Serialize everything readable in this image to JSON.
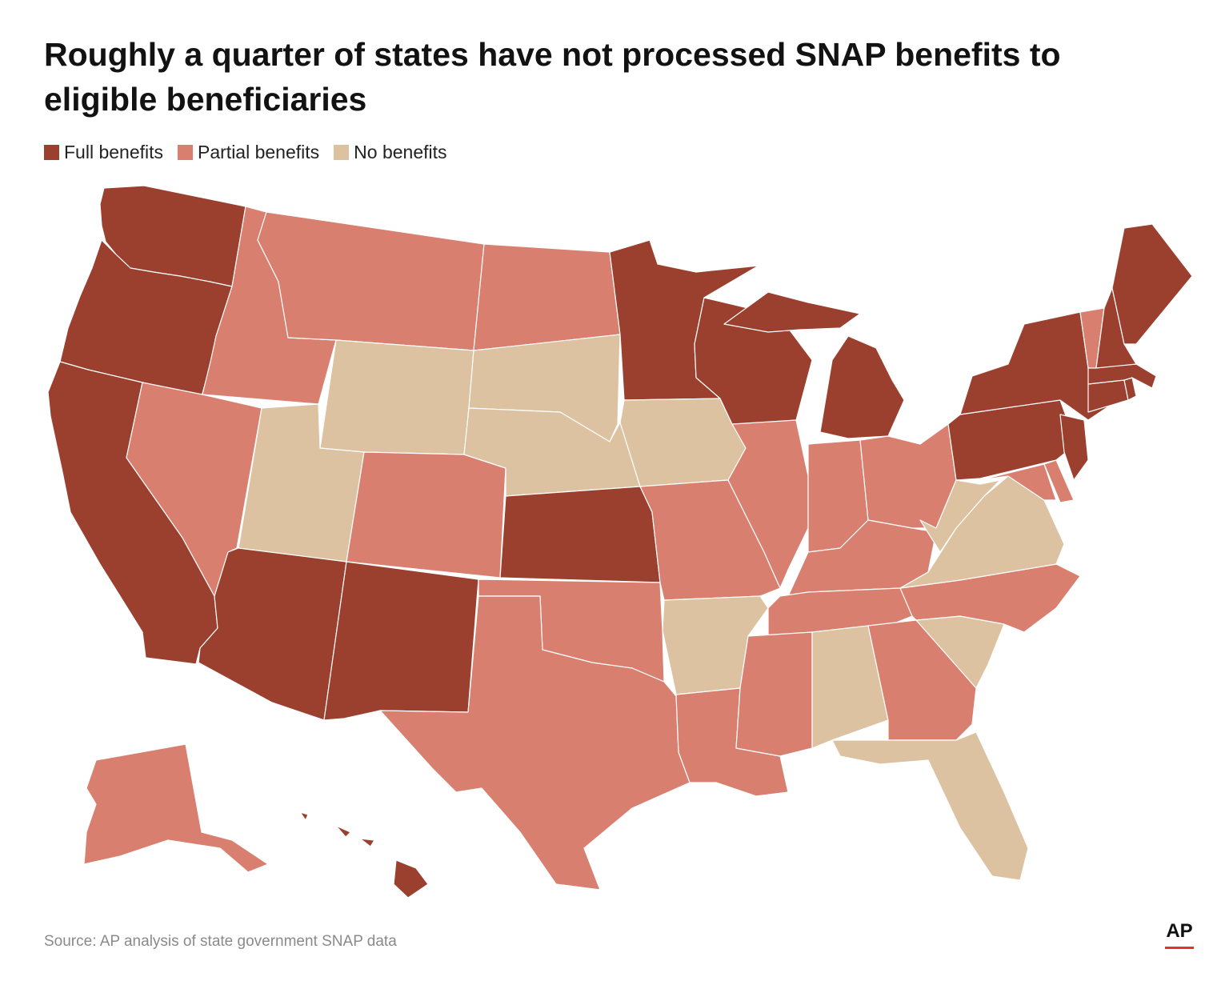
{
  "title": "Roughly a quarter of states have not processed SNAP benefits to eligible beneficiaries",
  "legend": [
    {
      "label": "Full benefits",
      "color": "#9b3f2e"
    },
    {
      "label": "Partial benefits",
      "color": "#d97f70"
    },
    {
      "label": "No benefits",
      "color": "#dcc2a1"
    }
  ],
  "states": [
    {
      "id": "WA",
      "status": "Full benefits"
    },
    {
      "id": "OR",
      "status": "Full benefits"
    },
    {
      "id": "CA",
      "status": "Full benefits"
    },
    {
      "id": "ID",
      "status": "Partial benefits"
    },
    {
      "id": "NV",
      "status": "Partial benefits"
    },
    {
      "id": "MT",
      "status": "Partial benefits"
    },
    {
      "id": "WY",
      "status": "No benefits"
    },
    {
      "id": "UT",
      "status": "No benefits"
    },
    {
      "id": "AZ",
      "status": "Full benefits"
    },
    {
      "id": "CO",
      "status": "Partial benefits"
    },
    {
      "id": "NM",
      "status": "Full benefits"
    },
    {
      "id": "ND",
      "status": "Partial benefits"
    },
    {
      "id": "SD",
      "status": "No benefits"
    },
    {
      "id": "NE",
      "status": "No benefits"
    },
    {
      "id": "KS",
      "status": "Full benefits"
    },
    {
      "id": "OK",
      "status": "Partial benefits"
    },
    {
      "id": "TX",
      "status": "Partial benefits"
    },
    {
      "id": "MN",
      "status": "Full benefits"
    },
    {
      "id": "IA",
      "status": "No benefits"
    },
    {
      "id": "MO",
      "status": "Partial benefits"
    },
    {
      "id": "AR",
      "status": "No benefits"
    },
    {
      "id": "LA",
      "status": "Partial benefits"
    },
    {
      "id": "WI",
      "status": "Full benefits"
    },
    {
      "id": "IL",
      "status": "Partial benefits"
    },
    {
      "id": "MI",
      "status": "Full benefits"
    },
    {
      "id": "IN",
      "status": "Partial benefits"
    },
    {
      "id": "OH",
      "status": "Partial benefits"
    },
    {
      "id": "KY",
      "status": "Partial benefits"
    },
    {
      "id": "TN",
      "status": "Partial benefits"
    },
    {
      "id": "MS",
      "status": "Partial benefits"
    },
    {
      "id": "AL",
      "status": "No benefits"
    },
    {
      "id": "GA",
      "status": "Partial benefits"
    },
    {
      "id": "FL",
      "status": "No benefits"
    },
    {
      "id": "SC",
      "status": "No benefits"
    },
    {
      "id": "NC",
      "status": "Partial benefits"
    },
    {
      "id": "VA",
      "status": "No benefits"
    },
    {
      "id": "WV",
      "status": "No benefits"
    },
    {
      "id": "MD",
      "status": "Partial benefits"
    },
    {
      "id": "DE",
      "status": "Partial benefits"
    },
    {
      "id": "PA",
      "status": "Full benefits"
    },
    {
      "id": "NJ",
      "status": "Full benefits"
    },
    {
      "id": "NY",
      "status": "Full benefits"
    },
    {
      "id": "CT",
      "status": "Full benefits"
    },
    {
      "id": "RI",
      "status": "Full benefits"
    },
    {
      "id": "MA",
      "status": "Full benefits"
    },
    {
      "id": "VT",
      "status": "Partial benefits"
    },
    {
      "id": "NH",
      "status": "Full benefits"
    },
    {
      "id": "ME",
      "status": "Full benefits"
    },
    {
      "id": "AK",
      "status": "Partial benefits"
    },
    {
      "id": "HI",
      "status": "Full benefits"
    }
  ],
  "source": "Source: AP analysis of state government SNAP data",
  "logo_text": "AP"
}
